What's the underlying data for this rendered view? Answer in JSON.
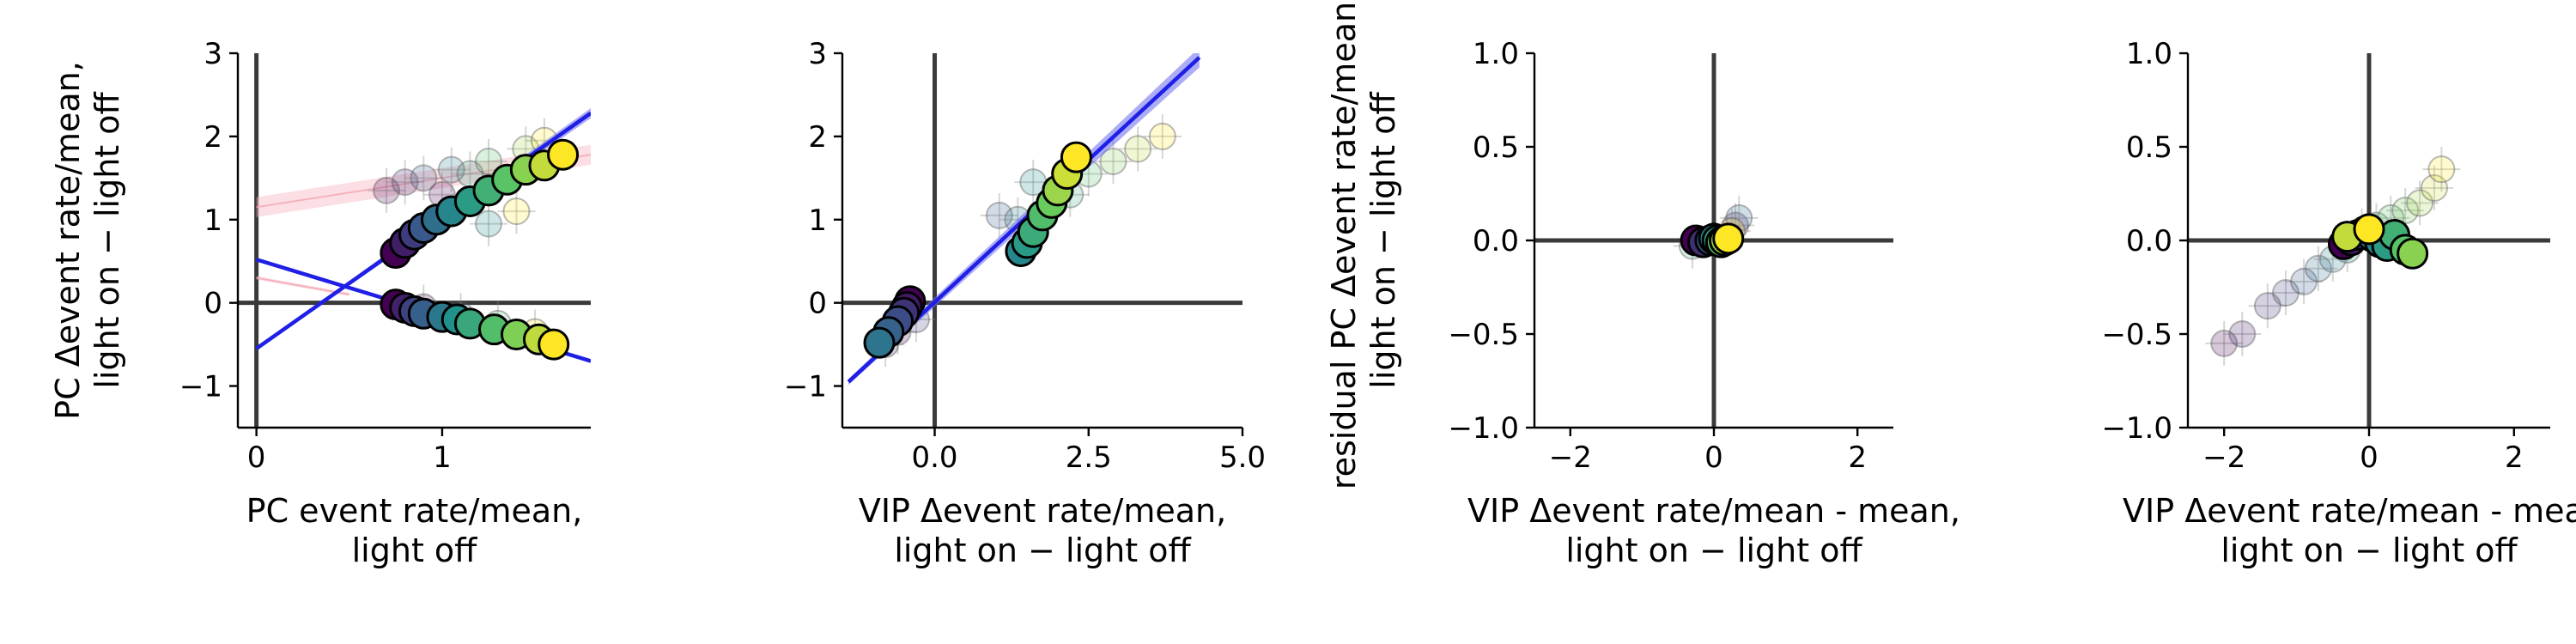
{
  "colors": {
    "fit_line": "#1f1fe6",
    "fit_band": "#6a6af0",
    "control_band": "#f7b7c3",
    "control_line": "#f4a7b5",
    "zero_line": "#3a3a3a",
    "viridis": [
      "#440154",
      "#3b528b",
      "#21918c",
      "#5ec962",
      "#fde725"
    ]
  },
  "chart_data": [
    {
      "type": "scatter",
      "xlabel": [
        "PC event rate/mean,",
        "light off"
      ],
      "ylabel": [
        "PC  Δevent rate/mean,",
        "light on − light off"
      ],
      "xlim": [
        -0.1,
        1.8
      ],
      "ylim": [
        -1.5,
        3
      ],
      "xticks": [
        0,
        1
      ],
      "xtick_labels": [
        "0",
        "1"
      ],
      "yticks": [
        -1,
        0,
        1,
        2,
        3
      ],
      "ytick_labels": [
        "−1",
        "0",
        "1",
        "2",
        "3"
      ],
      "series": [
        {
          "kind": "main",
          "x": [
            0.75,
            0.8,
            0.85,
            0.9,
            0.97,
            1.05,
            1.15,
            1.25,
            1.35,
            1.45,
            1.55,
            1.65
          ],
          "y": [
            0.6,
            0.72,
            0.82,
            0.9,
            1.0,
            1.1,
            1.22,
            1.35,
            1.48,
            1.6,
            1.65,
            1.78
          ]
        },
        {
          "kind": "main",
          "x": [
            0.75,
            0.8,
            0.85,
            0.9,
            1.0,
            1.08,
            1.15,
            1.28,
            1.4,
            1.52,
            1.6
          ],
          "y": [
            -0.02,
            -0.06,
            -0.1,
            -0.13,
            -0.17,
            -0.2,
            -0.25,
            -0.32,
            -0.38,
            -0.44,
            -0.5
          ]
        },
        {
          "kind": "faded",
          "x": [
            0.7,
            0.8,
            0.9,
            1.05,
            1.15,
            1.25,
            1.45,
            1.55
          ],
          "y": [
            1.35,
            1.45,
            1.5,
            1.6,
            1.55,
            1.7,
            1.85,
            1.95
          ]
        },
        {
          "kind": "faded",
          "x": [
            1.0,
            1.25,
            1.4
          ],
          "y": [
            1.3,
            0.95,
            1.1
          ]
        },
        {
          "kind": "faded",
          "x": [
            0.9,
            1.1,
            1.3,
            1.5
          ],
          "y": [
            -0.05,
            -0.15,
            -0.25,
            -0.35
          ]
        }
      ],
      "fits": [
        {
          "x": [
            0.0,
            1.8
          ],
          "y": [
            -0.55,
            2.28
          ],
          "band": 0.06
        },
        {
          "x": [
            0.0,
            1.8
          ],
          "y": [
            0.52,
            -0.7
          ],
          "band": 0.02
        }
      ],
      "control_fits": [
        {
          "x": [
            0.0,
            1.8
          ],
          "y": [
            1.15,
            1.78
          ],
          "band": 0.12
        },
        {
          "x": [
            0.0,
            0.5
          ],
          "y": [
            0.3,
            0.1
          ],
          "band": 0.02
        }
      ]
    },
    {
      "type": "scatter",
      "xlabel": [
        "VIP Δevent rate/mean,",
        "light on − light off"
      ],
      "ylabel": [],
      "xlim": [
        -1.5,
        5.0
      ],
      "ylim": [
        -1.5,
        3
      ],
      "xticks": [
        0,
        2.5,
        5.0
      ],
      "xtick_labels": [
        "0.0",
        "2.5",
        "5.0"
      ],
      "yticks": [
        -1,
        0,
        1,
        2,
        3
      ],
      "ytick_labels": [
        "−1",
        "0",
        "1",
        "2",
        "3"
      ],
      "series": [
        {
          "kind": "main",
          "x": [
            -0.4,
            -0.45,
            -0.5,
            -0.6,
            -0.75,
            -0.9,
            1.4,
            1.5,
            1.6,
            1.75,
            1.9,
            2.0,
            2.15,
            2.3
          ],
          "y": [
            0.02,
            -0.05,
            -0.12,
            -0.22,
            -0.35,
            -0.48,
            0.62,
            0.72,
            0.85,
            1.05,
            1.2,
            1.35,
            1.55,
            1.75
          ]
        },
        {
          "kind": "faded",
          "x": [
            -0.6,
            -0.8,
            -0.3,
            1.05,
            1.35,
            1.6,
            2.2,
            2.5,
            2.9,
            3.3,
            3.7
          ],
          "y": [
            -0.35,
            -0.5,
            -0.2,
            1.05,
            1.0,
            1.45,
            1.3,
            1.55,
            1.7,
            1.85,
            2.0
          ]
        }
      ],
      "fits": [
        {
          "x": [
            -1.4,
            4.3
          ],
          "y": [
            -0.95,
            2.95
          ],
          "band": 0.12
        }
      ],
      "control_fits": []
    },
    {
      "type": "scatter",
      "xlabel": [
        "VIP Δevent rate/mean - mean,",
        "light on − light off"
      ],
      "ylabel": [
        "residual PC Δevent rate/mean,",
        "light on − light off"
      ],
      "xlim": [
        -2.5,
        2.5
      ],
      "ylim": [
        -1.0,
        1.0
      ],
      "xticks": [
        -2,
        0,
        2
      ],
      "xtick_labels": [
        "−2",
        "0",
        "2"
      ],
      "yticks": [
        -1.0,
        -0.5,
        0.0,
        0.5,
        1.0
      ],
      "ytick_labels": [
        "−1.0",
        "−0.5",
        "0.0",
        "0.5",
        "1.0"
      ],
      "series": [
        {
          "kind": "main",
          "x": [
            -0.25,
            -0.15,
            -0.05,
            0.0,
            0.05,
            0.1,
            0.15,
            0.2
          ],
          "y": [
            0.0,
            -0.01,
            0.0,
            0.01,
            0.0,
            -0.01,
            0.0,
            0.01
          ]
        },
        {
          "kind": "faded",
          "x": [
            0.3,
            0.35,
            -0.3,
            0.25
          ],
          "y": [
            0.08,
            0.12,
            -0.03,
            0.05
          ]
        }
      ],
      "fits": [],
      "control_fits": []
    },
    {
      "type": "scatter",
      "xlabel": [
        "VIP Δevent rate/mean - mean,",
        "light on − light off"
      ],
      "ylabel": [],
      "xlim": [
        -2.5,
        2.5
      ],
      "ylim": [
        -1.0,
        1.0
      ],
      "xticks": [
        -2,
        0,
        2
      ],
      "xtick_labels": [
        "−2",
        "0",
        "2"
      ],
      "yticks": [
        -1.0,
        -0.5,
        0.0,
        0.5,
        1.0
      ],
      "ytick_labels": [
        "−1.0",
        "−0.5",
        "0.0",
        "0.5",
        "1.0"
      ],
      "series": [
        {
          "kind": "main",
          "x": [
            -0.35,
            -0.25,
            -0.15,
            -0.05,
            0.05,
            0.15,
            0.25,
            0.35,
            0.5,
            0.6,
            -0.3,
            0.0
          ],
          "y": [
            -0.02,
            0.0,
            0.03,
            0.05,
            0.02,
            -0.01,
            -0.03,
            0.03,
            -0.05,
            -0.07,
            0.02,
            0.06
          ]
        },
        {
          "kind": "faded",
          "x": [
            -2.0,
            -1.75,
            -1.4,
            -1.15,
            -0.9,
            -0.7,
            -0.5,
            -0.3,
            -0.1,
            0.1,
            0.3,
            0.5,
            0.7,
            0.9,
            1.0
          ],
          "y": [
            -0.55,
            -0.5,
            -0.35,
            -0.28,
            -0.22,
            -0.15,
            -0.1,
            -0.05,
            0.05,
            0.08,
            0.12,
            0.16,
            0.2,
            0.28,
            0.38
          ]
        }
      ],
      "fits": [],
      "control_fits": []
    }
  ]
}
